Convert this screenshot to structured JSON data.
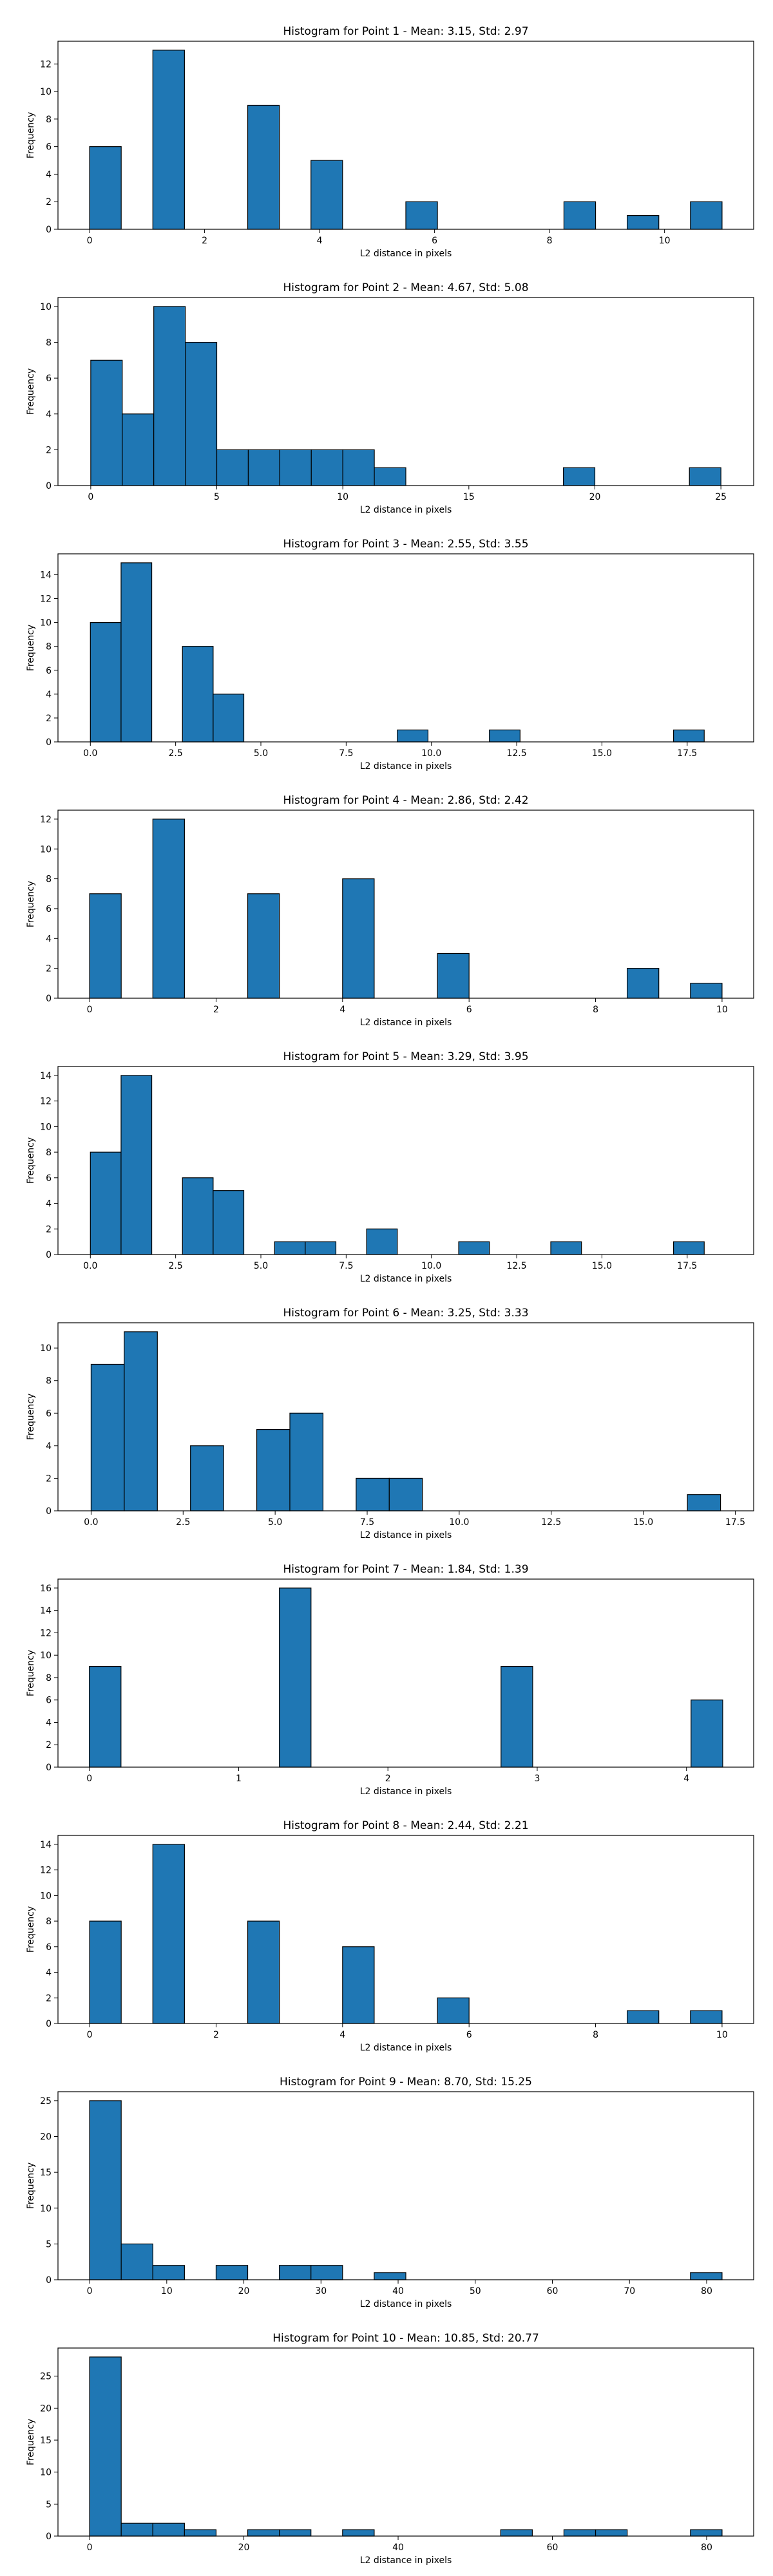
{
  "chart_data": [
    {
      "type": "bar",
      "title": "Histogram for Point 1 - Mean: 3.15, Std: 2.97",
      "xlabel": "L2 distance in pixels",
      "ylabel": "Frequency",
      "xlim": [
        -0.55,
        11.55
      ],
      "ylim": [
        0,
        13.65
      ],
      "xticks": [
        0,
        2,
        4,
        6,
        8,
        10
      ],
      "xtick_labels": [
        "0",
        "2",
        "4",
        "6",
        "8",
        "10"
      ],
      "yticks": [
        0,
        2,
        4,
        6,
        8,
        10,
        12
      ],
      "ytick_labels": [
        "0",
        "2",
        "4",
        "6",
        "8",
        "10",
        "12"
      ],
      "bin_edges": [
        0,
        0.55,
        1.1,
        1.65,
        2.2,
        2.75,
        3.3,
        3.85,
        4.4,
        4.95,
        5.5,
        6.05,
        6.6,
        7.15,
        7.7,
        8.25,
        8.8,
        9.35,
        9.9,
        10.45,
        11.0
      ],
      "values": [
        6,
        0,
        13,
        0,
        0,
        9,
        0,
        5,
        0,
        0,
        2,
        0,
        0,
        0,
        0,
        2,
        0,
        1,
        0,
        2
      ]
    },
    {
      "type": "bar",
      "title": "Histogram for Point 2 - Mean: 4.67, Std: 5.08",
      "xlabel": "L2 distance in pixels",
      "ylabel": "Frequency",
      "xlim": [
        -1.3,
        26.3
      ],
      "ylim": [
        0,
        10.5
      ],
      "xticks": [
        0,
        5,
        10,
        15,
        20,
        25
      ],
      "xtick_labels": [
        "0",
        "5",
        "10",
        "15",
        "20",
        "25"
      ],
      "yticks": [
        0,
        2,
        4,
        6,
        8,
        10
      ],
      "ytick_labels": [
        "0",
        "2",
        "4",
        "6",
        "8",
        "10"
      ],
      "bin_edges": [
        0,
        1.25,
        2.5,
        3.75,
        5.0,
        6.25,
        7.5,
        8.75,
        10.0,
        11.25,
        12.5,
        13.75,
        15.0,
        16.25,
        17.5,
        18.75,
        20.0,
        21.25,
        22.5,
        23.75,
        25.0
      ],
      "values": [
        7,
        4,
        10,
        8,
        2,
        2,
        2,
        2,
        2,
        1,
        0,
        0,
        0,
        0,
        0,
        1,
        0,
        0,
        0,
        1
      ]
    },
    {
      "type": "bar",
      "title": "Histogram for Point 3 - Mean: 2.55, Std: 3.55",
      "xlabel": "L2 distance in pixels",
      "ylabel": "Frequency",
      "xlim": [
        -0.95,
        19.45
      ],
      "ylim": [
        0,
        15.75
      ],
      "xticks": [
        0,
        2.5,
        5,
        7.5,
        10,
        12.5,
        15,
        17.5
      ],
      "xtick_labels": [
        "0.0",
        "2.5",
        "5.0",
        "7.5",
        "10.0",
        "12.5",
        "15.0",
        "17.5"
      ],
      "yticks": [
        0,
        2,
        4,
        6,
        8,
        10,
        12,
        14
      ],
      "ytick_labels": [
        "0",
        "2",
        "4",
        "6",
        "8",
        "10",
        "12",
        "14"
      ],
      "bin_edges": [
        0,
        0.9,
        1.8,
        2.7,
        3.6,
        4.5,
        5.4,
        6.3,
        7.2,
        8.1,
        9.0,
        9.9,
        10.8,
        11.7,
        12.6,
        13.5,
        14.4,
        15.3,
        16.2,
        17.1,
        18.0
      ],
      "values": [
        10,
        15,
        0,
        8,
        4,
        0,
        0,
        0,
        0,
        0,
        1,
        0,
        0,
        1,
        0,
        0,
        0,
        0,
        0,
        1
      ]
    },
    {
      "type": "bar",
      "title": "Histogram for Point 4 - Mean: 2.86, Std: 2.42",
      "xlabel": "L2 distance in pixels",
      "ylabel": "Frequency",
      "xlim": [
        -0.5,
        10.5
      ],
      "ylim": [
        0,
        12.6
      ],
      "xticks": [
        0,
        2,
        4,
        6,
        8,
        10
      ],
      "xtick_labels": [
        "0",
        "2",
        "4",
        "6",
        "8",
        "10"
      ],
      "yticks": [
        0,
        2,
        4,
        6,
        8,
        10,
        12
      ],
      "ytick_labels": [
        "0",
        "2",
        "4",
        "6",
        "8",
        "10",
        "12"
      ],
      "bin_edges": [
        0,
        0.5,
        1.0,
        1.5,
        2.0,
        2.5,
        3.0,
        3.5,
        4.0,
        4.5,
        5.0,
        5.5,
        6.0,
        6.5,
        7.0,
        7.5,
        8.0,
        8.5,
        9.0,
        9.5,
        10.0
      ],
      "values": [
        7,
        0,
        12,
        0,
        0,
        7,
        0,
        0,
        8,
        0,
        0,
        3,
        0,
        0,
        0,
        0,
        0,
        2,
        0,
        1
      ]
    },
    {
      "type": "bar",
      "title": "Histogram for Point 5 - Mean: 3.29, Std: 3.95",
      "xlabel": "L2 distance in pixels",
      "ylabel": "Frequency",
      "xlim": [
        -0.95,
        19.45
      ],
      "ylim": [
        0,
        14.7
      ],
      "xticks": [
        0,
        2.5,
        5,
        7.5,
        10,
        12.5,
        15,
        17.5
      ],
      "xtick_labels": [
        "0.0",
        "2.5",
        "5.0",
        "7.5",
        "10.0",
        "12.5",
        "15.0",
        "17.5"
      ],
      "yticks": [
        0,
        2,
        4,
        6,
        8,
        10,
        12,
        14
      ],
      "ytick_labels": [
        "0",
        "2",
        "4",
        "6",
        "8",
        "10",
        "12",
        "14"
      ],
      "bin_edges": [
        0,
        0.9,
        1.8,
        2.7,
        3.6,
        4.5,
        5.4,
        6.3,
        7.2,
        8.1,
        9.0,
        9.9,
        10.8,
        11.7,
        12.6,
        13.5,
        14.4,
        15.3,
        16.2,
        17.1,
        18.0
      ],
      "values": [
        8,
        14,
        0,
        6,
        5,
        0,
        1,
        1,
        0,
        2,
        0,
        0,
        1,
        0,
        0,
        1,
        0,
        0,
        0,
        1
      ]
    },
    {
      "type": "bar",
      "title": "Histogram for Point 6 - Mean: 3.25, Std: 3.33",
      "xlabel": "L2 distance in pixels",
      "ylabel": "Frequency",
      "xlim": [
        -0.9,
        18.0
      ],
      "ylim": [
        0,
        11.55
      ],
      "xticks": [
        0,
        2.5,
        5,
        7.5,
        10,
        12.5,
        15,
        17.5
      ],
      "xtick_labels": [
        "0.0",
        "2.5",
        "5.0",
        "7.5",
        "10.0",
        "12.5",
        "15.0",
        "17.5"
      ],
      "yticks": [
        0,
        2,
        4,
        6,
        8,
        10
      ],
      "ytick_labels": [
        "0",
        "2",
        "4",
        "6",
        "8",
        "10"
      ],
      "bin_edges": [
        0,
        0.9,
        1.8,
        2.7,
        3.6,
        4.5,
        5.4,
        6.3,
        7.2,
        8.1,
        9.0,
        9.9,
        10.8,
        11.7,
        12.6,
        13.5,
        14.4,
        15.3,
        16.2,
        17.1
      ],
      "values": [
        9,
        11,
        0,
        4,
        0,
        5,
        6,
        0,
        2,
        2,
        0,
        0,
        0,
        0,
        0,
        0,
        0,
        0,
        1
      ]
    },
    {
      "type": "bar",
      "title": "Histogram for Point 7 - Mean: 1.84, Std: 1.39",
      "xlabel": "L2 distance in pixels",
      "ylabel": "Frequency",
      "xlim": [
        -0.21,
        4.45
      ],
      "ylim": [
        0,
        16.8
      ],
      "xticks": [
        0,
        1,
        2,
        3,
        4
      ],
      "xtick_labels": [
        "0",
        "1",
        "2",
        "3",
        "4"
      ],
      "yticks": [
        0,
        2,
        4,
        6,
        8,
        10,
        12,
        14,
        16
      ],
      "ytick_labels": [
        "0",
        "2",
        "4",
        "6",
        "8",
        "10",
        "12",
        "14",
        "16"
      ],
      "bin_edges": [
        0,
        0.2121,
        0.4243,
        0.6364,
        0.8485,
        1.0607,
        1.2728,
        1.4849,
        1.6971,
        1.9092,
        2.1213,
        2.3335,
        2.5456,
        2.7577,
        2.9698,
        3.182,
        3.3941,
        3.6062,
        3.8184,
        4.0305,
        4.2426
      ],
      "values": [
        9,
        0,
        0,
        0,
        0,
        0,
        16,
        0,
        0,
        0,
        0,
        0,
        0,
        9,
        0,
        0,
        0,
        0,
        0,
        6
      ]
    },
    {
      "type": "bar",
      "title": "Histogram for Point 8 - Mean: 2.44, Std: 2.21",
      "xlabel": "L2 distance in pixels",
      "ylabel": "Frequency",
      "xlim": [
        -0.5,
        10.5
      ],
      "ylim": [
        0,
        14.7
      ],
      "xticks": [
        0,
        2,
        4,
        6,
        8,
        10
      ],
      "xtick_labels": [
        "0",
        "2",
        "4",
        "6",
        "8",
        "10"
      ],
      "yticks": [
        0,
        2,
        4,
        6,
        8,
        10,
        12,
        14
      ],
      "ytick_labels": [
        "0",
        "2",
        "4",
        "6",
        "8",
        "10",
        "12",
        "14"
      ],
      "bin_edges": [
        0,
        0.5,
        1.0,
        1.5,
        2.0,
        2.5,
        3.0,
        3.5,
        4.0,
        4.5,
        5.0,
        5.5,
        6.0,
        6.5,
        7.0,
        7.5,
        8.0,
        8.5,
        9.0,
        9.5,
        10.0
      ],
      "values": [
        8,
        0,
        14,
        0,
        0,
        8,
        0,
        0,
        6,
        0,
        0,
        2,
        0,
        0,
        0,
        0,
        0,
        1,
        0,
        1
      ]
    },
    {
      "type": "bar",
      "title": "Histogram for Point 9 - Mean: 8.70, Std: 15.25",
      "xlabel": "L2 distance in pixels",
      "ylabel": "Frequency",
      "xlim": [
        -4.1,
        86.1
      ],
      "ylim": [
        0,
        26.25
      ],
      "xticks": [
        0,
        10,
        20,
        30,
        40,
        50,
        60,
        70,
        80
      ],
      "xtick_labels": [
        "0",
        "10",
        "20",
        "30",
        "40",
        "50",
        "60",
        "70",
        "80"
      ],
      "yticks": [
        0,
        5,
        10,
        15,
        20,
        25
      ],
      "ytick_labels": [
        "0",
        "5",
        "10",
        "15",
        "20",
        "25"
      ],
      "bin_edges": [
        0,
        4.1,
        8.2,
        12.3,
        16.4,
        20.5,
        24.6,
        28.7,
        32.8,
        36.9,
        41.0,
        45.1,
        49.2,
        53.3,
        57.4,
        61.5,
        65.6,
        69.7,
        73.8,
        77.9,
        82.0
      ],
      "values": [
        25,
        5,
        2,
        0,
        2,
        0,
        2,
        2,
        0,
        1,
        0,
        0,
        0,
        0,
        0,
        0,
        0,
        0,
        0,
        1
      ]
    },
    {
      "type": "bar",
      "title": "Histogram for Point 10 - Mean: 10.85, Std: 20.77",
      "xlabel": "L2 distance in pixels",
      "ylabel": "Frequency",
      "xlim": [
        -4.1,
        86.1
      ],
      "ylim": [
        0,
        29.4
      ],
      "xticks": [
        0,
        20,
        40,
        60,
        80
      ],
      "xtick_labels": [
        "0",
        "20",
        "40",
        "60",
        "80"
      ],
      "yticks": [
        0,
        5,
        10,
        15,
        20,
        25
      ],
      "ytick_labels": [
        "0",
        "5",
        "10",
        "15",
        "20",
        "25"
      ],
      "bin_edges": [
        0,
        4.1,
        8.2,
        12.3,
        16.4,
        20.5,
        24.6,
        28.7,
        32.8,
        36.9,
        41.0,
        45.1,
        49.2,
        53.3,
        57.4,
        61.5,
        65.6,
        69.7,
        73.8,
        77.9,
        82.0
      ],
      "values": [
        28,
        2,
        2,
        1,
        0,
        1,
        1,
        0,
        1,
        0,
        0,
        0,
        0,
        1,
        0,
        1,
        1,
        0,
        0,
        1
      ]
    }
  ],
  "style": {
    "bar_color": "#1f77b4",
    "edge_color": "#000000"
  }
}
